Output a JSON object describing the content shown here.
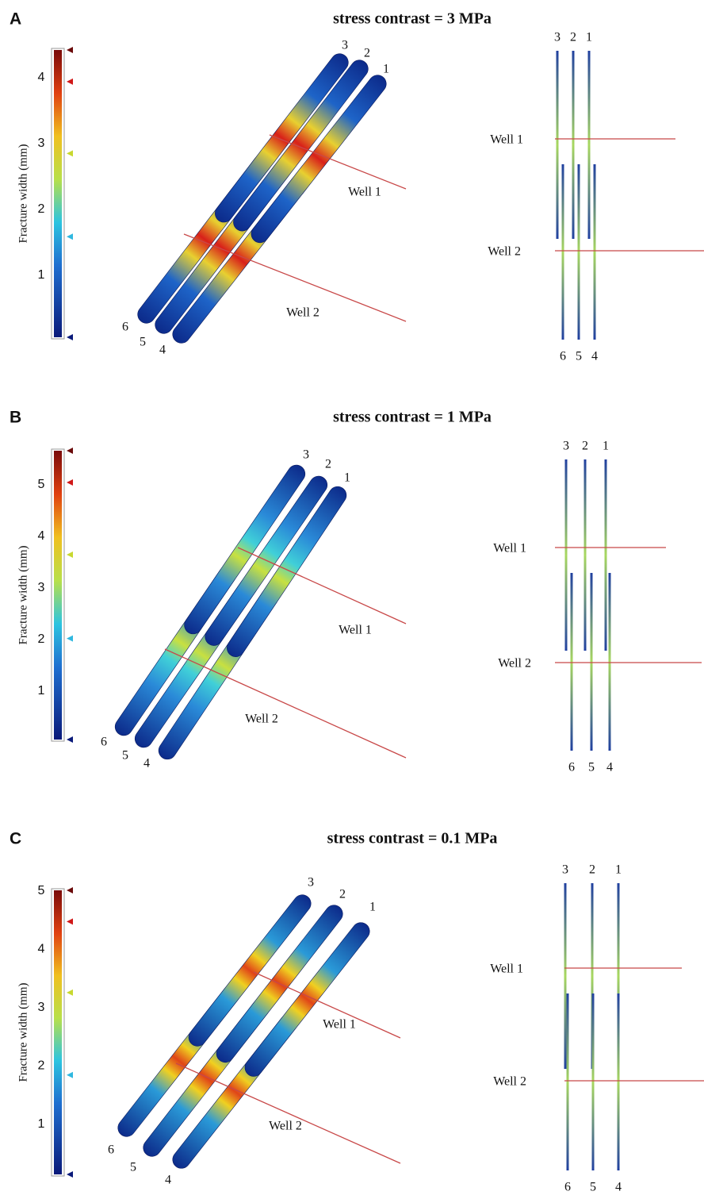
{
  "panels": [
    {
      "label": "A",
      "title": "stress contrast = 3 MPa",
      "colorbar": {
        "axis_label": "Fracture width (mm)",
        "ticks": [
          1,
          2,
          3,
          4
        ]
      },
      "fractures": [
        "1",
        "2",
        "3",
        "4",
        "5",
        "6"
      ],
      "wells": [
        "Well 1",
        "Well 2"
      ]
    },
    {
      "label": "B",
      "title": "stress contrast = 1 MPa",
      "colorbar": {
        "axis_label": "Fracture width (mm)",
        "ticks": [
          1,
          2,
          3,
          4,
          5
        ]
      },
      "fractures": [
        "1",
        "2",
        "3",
        "4",
        "5",
        "6"
      ],
      "wells": [
        "Well 1",
        "Well 2"
      ]
    },
    {
      "label": "C",
      "title": "stress contrast = 0.1 MPa",
      "colorbar": {
        "axis_label": "Fracture width (mm)",
        "ticks": [
          1,
          2,
          3,
          4,
          5
        ]
      },
      "fractures": [
        "1",
        "2",
        "3",
        "4",
        "5",
        "6"
      ],
      "wells": [
        "Well 1",
        "Well 2"
      ]
    }
  ]
}
